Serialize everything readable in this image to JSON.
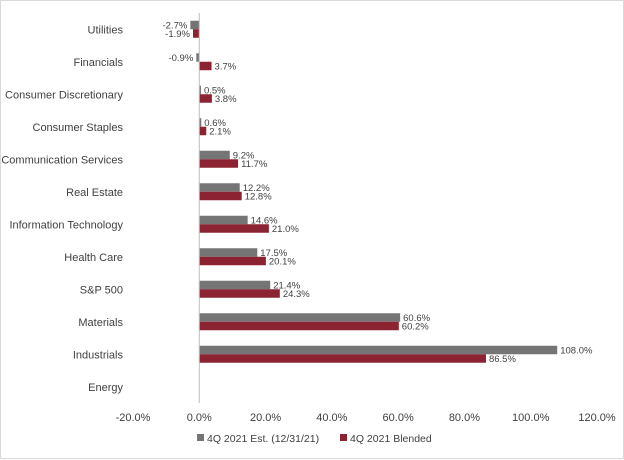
{
  "chart_data": {
    "type": "bar",
    "orientation": "horizontal",
    "title": "",
    "xlabel": "",
    "ylabel": "",
    "xlim": [
      -20,
      120
    ],
    "tick_step": 20,
    "tick_labels": [
      "-20.0%",
      "0.0%",
      "20.0%",
      "40.0%",
      "60.0%",
      "80.0%",
      "100.0%",
      "120.0%"
    ],
    "grid": false,
    "legend_position": "bottom",
    "categories": [
      "Utilities",
      "Financials",
      "Consumer Discretionary",
      "Consumer Staples",
      "Communication Services",
      "Real Estate",
      "Information Technology",
      "Health Care",
      "S&P 500",
      "Materials",
      "Industrials",
      "Energy"
    ],
    "series": [
      {
        "name": "4Q 2021 Est. (12/31/21)",
        "color": "#757575",
        "values": [
          -2.7,
          -0.9,
          0.5,
          0.6,
          9.2,
          12.2,
          14.6,
          17.5,
          21.4,
          60.6,
          108.0,
          null
        ],
        "labels": [
          "-2.7%",
          "-0.9%",
          "0.5%",
          "0.6%",
          "9.2%",
          "12.2%",
          "14.6%",
          "17.5%",
          "21.4%",
          "60.6%",
          "108.0%",
          ""
        ]
      },
      {
        "name": "4Q 2021 Blended",
        "color": "#8b2332",
        "values": [
          -1.9,
          3.7,
          3.8,
          2.1,
          11.7,
          12.8,
          21.0,
          20.1,
          24.3,
          60.2,
          86.5,
          null
        ],
        "labels": [
          "-1.9%",
          "3.7%",
          "3.8%",
          "2.1%",
          "11.7%",
          "12.8%",
          "21.0%",
          "20.1%",
          "24.3%",
          "60.2%",
          "86.5%",
          ""
        ]
      }
    ]
  }
}
